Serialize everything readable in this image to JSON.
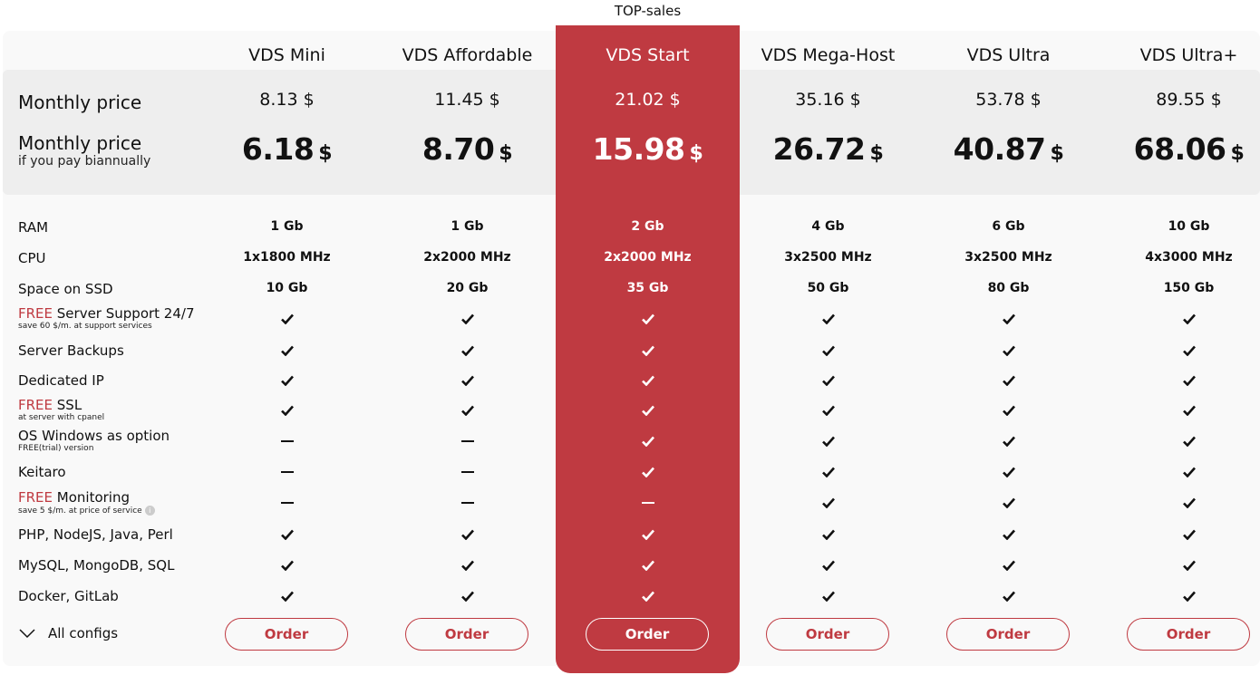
{
  "accent_color": "#bf3a41",
  "badge": "TOP-sales",
  "highlighted_plan": 2,
  "labels": {
    "monthly": "Monthly price",
    "biannual": "Monthly price",
    "biannual_sub": "if you pay biannually",
    "all_configs": "All configs",
    "currency": "$"
  },
  "plans": [
    {
      "name": "VDS Mini",
      "price": "8.13 $",
      "biannual": "6.18",
      "order": "Order"
    },
    {
      "name": "VDS Affordable",
      "price": "11.45 $",
      "biannual": "8.70",
      "order": "Order"
    },
    {
      "name": "VDS Start",
      "price": "21.02 $",
      "biannual": "15.98",
      "order": "Order"
    },
    {
      "name": "VDS Mega-Host",
      "price": "35.16 $",
      "biannual": "26.72",
      "order": "Order"
    },
    {
      "name": "VDS Ultra",
      "price": "53.78 $",
      "biannual": "40.87",
      "order": "Order"
    },
    {
      "name": "VDS Ultra+",
      "price": "89.55 $",
      "biannual": "68.06",
      "order": "Order"
    }
  ],
  "features": [
    {
      "free": "",
      "label": "RAM",
      "sub": "",
      "values": [
        "1 Gb",
        "1 Gb",
        "2 Gb",
        "4 Gb",
        "6 Gb",
        "10 Gb"
      ]
    },
    {
      "free": "",
      "label": "CPU",
      "sub": "",
      "values": [
        "1x1800 MHz",
        "2x2000 MHz",
        "2x2000 MHz",
        "3x2500 MHz",
        "3x2500 MHz",
        "4x3000 MHz"
      ]
    },
    {
      "free": "",
      "label": "Space on SSD",
      "sub": "",
      "values": [
        "10 Gb",
        "20 Gb",
        "35 Gb",
        "50 Gb",
        "80 Gb",
        "150 Gb"
      ]
    },
    {
      "free": "FREE",
      "label": " Server Support 24/7",
      "sub": "save 60 $/m. at support services",
      "values": [
        "check",
        "check",
        "check",
        "check",
        "check",
        "check"
      ]
    },
    {
      "free": "",
      "label": "Server Backups",
      "sub": "",
      "values": [
        "check",
        "check",
        "check",
        "check",
        "check",
        "check"
      ]
    },
    {
      "free": "",
      "label": "Dedicated IP",
      "sub": "",
      "values": [
        "check",
        "check",
        "check",
        "check",
        "check",
        "check"
      ]
    },
    {
      "free": "FREE",
      "label": " SSL",
      "sub": "at server with cpanel",
      "values": [
        "check",
        "check",
        "check",
        "check",
        "check",
        "check"
      ]
    },
    {
      "free": "",
      "label": "OS Windows as option",
      "sub": "FREE(trial) version",
      "values": [
        "dash",
        "dash",
        "check",
        "check",
        "check",
        "check"
      ]
    },
    {
      "free": "",
      "label": "Keitaro",
      "sub": "",
      "values": [
        "dash",
        "dash",
        "check",
        "check",
        "check",
        "check"
      ]
    },
    {
      "free": "FREE",
      "label": " Monitoring",
      "sub": "save 5 $/m. at price of service",
      "info": "i",
      "values": [
        "dash",
        "dash",
        "dash",
        "check",
        "check",
        "check"
      ]
    },
    {
      "free": "",
      "label": "PHP, NodeJS, Java, Perl",
      "sub": "",
      "values": [
        "check",
        "check",
        "check",
        "check",
        "check",
        "check"
      ]
    },
    {
      "free": "",
      "label": "MySQL, MongoDB, SQL",
      "sub": "",
      "values": [
        "check",
        "check",
        "check",
        "check",
        "check",
        "check"
      ]
    },
    {
      "free": "",
      "label": "Docker, GitLab",
      "sub": "",
      "values": [
        "check",
        "check",
        "check",
        "check",
        "check",
        "check"
      ]
    }
  ]
}
